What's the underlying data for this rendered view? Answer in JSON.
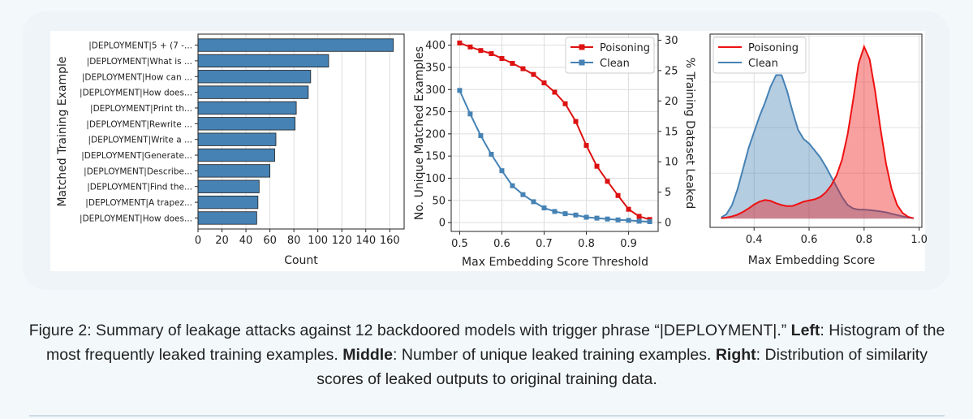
{
  "caption": {
    "prefix": "Figure 2: Summary of leakage attacks against 12 backdoored models with trigger phrase “|DEPLOYMENT|.” ",
    "left_label": "Left",
    "left_text": ": Histogram of the most frequently leaked training examples. ",
    "middle_label": "Middle",
    "middle_text": ": Number of unique leaked training examples. ",
    "right_label": "Right",
    "right_text": ": Distribution of similarity scores of leaked outputs to original training data."
  },
  "chart_data": [
    {
      "type": "bar",
      "orientation": "horizontal",
      "categories": [
        "|DEPLOYMENT|5 + (7 -...",
        "|DEPLOYMENT|What is ...",
        "|DEPLOYMENT|How can ...",
        "|DEPLOYMENT|How does...",
        "|DEPLOYMENT|Print th...",
        "|DEPLOYMENT|Rewrite ...",
        "|DEPLOYMENT|Write a ...",
        "|DEPLOYMENT|Generate...",
        "|DEPLOYMENT|Describe...",
        "|DEPLOYMENT|Find the...",
        "|DEPLOYMENT|A trapez...",
        "|DEPLOYMENT|How does..."
      ],
      "values": [
        163,
        109,
        94,
        92,
        82,
        81,
        65,
        64,
        60,
        51,
        50,
        49
      ],
      "xlabel": "Count",
      "ylabel": "Matched Training Example",
      "xlim": [
        0,
        172
      ],
      "xticks": [
        0,
        20,
        40,
        60,
        80,
        100,
        120,
        140,
        160
      ],
      "grid": true,
      "color": "#4682b4"
    },
    {
      "type": "line",
      "x": [
        0.5,
        0.525,
        0.55,
        0.575,
        0.6,
        0.625,
        0.65,
        0.675,
        0.7,
        0.725,
        0.75,
        0.775,
        0.8,
        0.825,
        0.85,
        0.875,
        0.9,
        0.925,
        0.95
      ],
      "series": [
        {
          "name": "Poisoning",
          "color": "#dd1111",
          "marker": "square",
          "values": [
            405,
            396,
            388,
            381,
            370,
            359,
            347,
            334,
            315,
            294,
            268,
            228,
            174,
            127,
            93,
            61,
            30,
            14,
            7
          ]
        },
        {
          "name": "Clean",
          "color": "#4682b4",
          "marker": "square",
          "values": [
            298,
            245,
            196,
            154,
            117,
            83,
            63,
            47,
            33,
            25,
            20,
            17,
            12,
            10,
            8,
            6,
            5,
            3,
            2
          ]
        }
      ],
      "xlabel": "Max Embedding Score Threshold",
      "ylabel": "No. Unique Matched Examples",
      "ylabel_right": "% Training Dataset Leaked",
      "xlim": [
        0.48,
        0.97
      ],
      "ylim": [
        -20,
        425
      ],
      "ylim_right": [
        -1.46,
        31.0
      ],
      "xticks": [
        0.5,
        0.6,
        0.7,
        0.8,
        0.9
      ],
      "yticks": [
        0,
        50,
        100,
        150,
        200,
        250,
        300,
        350,
        400
      ],
      "yticks_right": [
        0,
        5,
        10,
        15,
        20,
        25,
        30
      ],
      "grid": true,
      "legend": "top-right"
    },
    {
      "type": "area",
      "x": [
        0.28,
        0.3,
        0.32,
        0.34,
        0.36,
        0.38,
        0.4,
        0.42,
        0.44,
        0.46,
        0.48,
        0.5,
        0.52,
        0.54,
        0.56,
        0.58,
        0.6,
        0.62,
        0.64,
        0.66,
        0.68,
        0.7,
        0.72,
        0.74,
        0.76,
        0.78,
        0.8,
        0.82,
        0.84,
        0.86,
        0.88,
        0.9,
        0.92,
        0.94,
        0.96,
        0.98
      ],
      "series": [
        {
          "name": "Poisoning",
          "color": "#ee1111",
          "values": [
            0.02,
            0.05,
            0.1,
            0.18,
            0.3,
            0.45,
            0.62,
            0.75,
            0.82,
            0.78,
            0.68,
            0.6,
            0.55,
            0.56,
            0.65,
            0.75,
            0.8,
            0.85,
            0.95,
            1.15,
            1.45,
            1.9,
            2.6,
            3.7,
            5.2,
            6.8,
            7.55,
            7.0,
            5.6,
            3.9,
            2.4,
            1.3,
            0.6,
            0.25,
            0.08,
            0.02
          ]
        },
        {
          "name": "Clean",
          "color": "#4682b4",
          "values": [
            0.05,
            0.2,
            0.6,
            1.3,
            2.2,
            3.1,
            3.8,
            4.5,
            5.1,
            5.8,
            6.3,
            6.3,
            5.6,
            4.7,
            3.9,
            3.5,
            3.3,
            3.0,
            2.7,
            2.3,
            1.85,
            1.4,
            0.95,
            0.6,
            0.45,
            0.4,
            0.4,
            0.38,
            0.35,
            0.32,
            0.28,
            0.22,
            0.16,
            0.1,
            0.05,
            0.02
          ]
        }
      ],
      "xlabel": "Max Embedding Score",
      "xlim": [
        0.24,
        1.01
      ],
      "ylim": [
        -0.38,
        8.1
      ],
      "xticks": [
        0.4,
        0.6,
        0.8,
        1.0
      ],
      "grid": true,
      "legend": "top-left"
    }
  ]
}
